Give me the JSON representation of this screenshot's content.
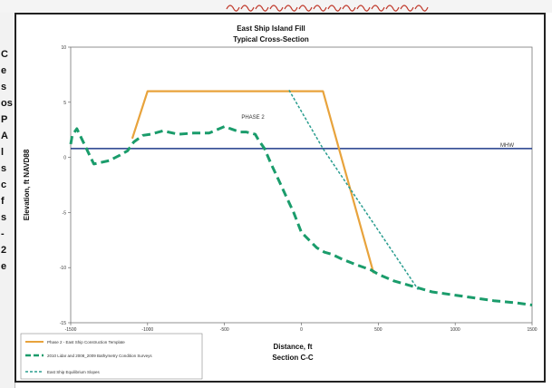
{
  "page": {
    "top_strip_color": "#c0392b",
    "left_partial_letters": [
      "C",
      "e",
      "s",
      "os",
      "P",
      "A",
      "l",
      "s",
      "c",
      "f",
      "s",
      "-",
      "2",
      "e"
    ]
  },
  "chart_data": {
    "type": "line",
    "title": "East Ship Island Fill",
    "subtitle": "Typical Cross-Section",
    "xlabel": "Distance, ft",
    "xlabel2": "Section C-C",
    "ylabel": "Elevation, ft NAVD88",
    "xlim": [
      -1500,
      1500
    ],
    "ylim": [
      -15,
      10
    ],
    "x_ticks": [
      -1500,
      -1000,
      -500,
      0,
      500,
      1000,
      1500
    ],
    "x_tick_labels": [
      "-1500",
      "-1000",
      "-500",
      "0",
      "500",
      "1000",
      "1500"
    ],
    "y_ticks": [
      -15,
      -10,
      -5,
      0,
      5,
      10
    ],
    "y_tick_labels": [
      "-15",
      "-10",
      "-5",
      "0",
      "5",
      "10"
    ],
    "grid": false,
    "legend_position": "bottom-left",
    "reference_line": {
      "label": "MHW",
      "y": 0.8,
      "color": "#1f3a8a"
    },
    "annotations": [
      {
        "text": "PHASE 2",
        "x": -390,
        "y": 3.5
      }
    ],
    "series": [
      {
        "name": "Phase 2 - East Ship Construction Template",
        "style": "solid",
        "color": "#e8a33c",
        "x": [
          -1100,
          -1000,
          -160,
          -80,
          140,
          470
        ],
        "y": [
          1.7,
          6,
          6,
          6,
          6,
          -10.5
        ]
      },
      {
        "name": "2010 Lidar and 2008_2009 Bathymetry Condition Surveys",
        "style": "dashed",
        "color": "#1a9c6b",
        "x": [
          -1500,
          -1490,
          -1460,
          -1350,
          -1250,
          -1180,
          -1130,
          -1090,
          -1030,
          -980,
          -900,
          -800,
          -700,
          -650,
          -600,
          -500,
          -440,
          -400,
          -360,
          -300,
          -280,
          -240,
          -200,
          -150,
          -100,
          -50,
          0,
          50,
          100,
          150,
          200,
          260,
          350,
          450,
          500,
          600,
          750,
          850,
          1000,
          1100,
          1250,
          1400,
          1500
        ],
        "y": [
          1.2,
          2.0,
          2.6,
          -0.6,
          -0.3,
          0.2,
          0.6,
          1.4,
          2.0,
          2.1,
          2.4,
          2.1,
          2.2,
          2.2,
          2.2,
          2.8,
          2.5,
          2.3,
          2.3,
          2.1,
          1.6,
          0.8,
          -0.5,
          -2.0,
          -3.5,
          -5.0,
          -6.8,
          -7.5,
          -8.2,
          -8.6,
          -8.8,
          -9.2,
          -9.7,
          -10.2,
          -10.6,
          -11.2,
          -11.8,
          -12.2,
          -12.5,
          -12.7,
          -13.0,
          -13.2,
          -13.4
        ]
      },
      {
        "name": "East Ship Equilibrium Slopes",
        "style": "dashed",
        "color": "#2a9d8f",
        "x": [
          -80,
          140,
          470,
          760
        ],
        "y": [
          6.1,
          0.8,
          -6.0,
          -12.0
        ]
      }
    ]
  }
}
